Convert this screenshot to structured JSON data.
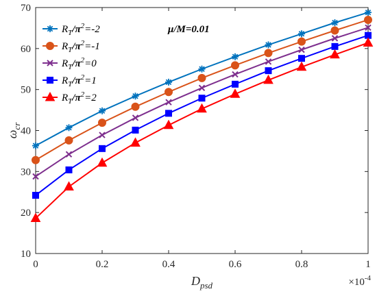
{
  "chart_data": {
    "type": "line",
    "x": [
      0,
      0.1,
      0.2,
      0.3,
      0.4,
      0.5,
      0.6,
      0.7,
      0.8,
      0.9,
      1.0
    ],
    "xlim": [
      0,
      1
    ],
    "ylim": [
      10,
      70
    ],
    "xticks": [
      "0",
      "0.2",
      "0.4",
      "0.6",
      "0.8",
      "1"
    ],
    "yticks": [
      "10",
      "20",
      "30",
      "40",
      "50",
      "60",
      "70"
    ],
    "xticks_values": [
      0,
      0.2,
      0.4,
      0.6,
      0.8,
      1.0
    ],
    "yticks_values": [
      10,
      20,
      30,
      40,
      50,
      60,
      70
    ],
    "xlabel": {
      "main": "D",
      "sub": "psd"
    },
    "ylabel": {
      "main": "ω",
      "sub": "cr"
    },
    "x_multiplier": {
      "base": "×10",
      "exp": "-4"
    },
    "annotation": "μ/M=0.01",
    "legend_placement": "top-left",
    "grid": false,
    "series": [
      {
        "name": "R_T/π²=-2",
        "label_main": "R",
        "label_sub": "T",
        "label_rest": "/π",
        "label_sup": "2",
        "label_tail": "=-2",
        "color": "#0072BD",
        "marker": "asterisk",
        "values": [
          36.3,
          40.7,
          44.8,
          48.4,
          51.8,
          55.0,
          58.0,
          60.9,
          63.6,
          66.3,
          68.8
        ]
      },
      {
        "name": "R_T/π²=-1",
        "label_main": "R",
        "label_sub": "T",
        "label_rest": "/π",
        "label_sup": "2",
        "label_tail": "=-1",
        "color": "#D95319",
        "marker": "circle",
        "values": [
          32.8,
          37.6,
          41.9,
          45.8,
          49.4,
          52.8,
          55.9,
          58.9,
          61.7,
          64.4,
          67.0
        ]
      },
      {
        "name": "R_T/π²=0",
        "label_main": "R",
        "label_sub": "T",
        "label_rest": "/π",
        "label_sup": "2",
        "label_tail": "=0",
        "color": "#7E2F8E",
        "marker": "x",
        "values": [
          28.8,
          34.2,
          38.9,
          43.1,
          46.9,
          50.4,
          53.7,
          56.8,
          59.7,
          62.5,
          65.1
        ]
      },
      {
        "name": "R_T/π²=1",
        "label_main": "R",
        "label_sub": "T",
        "label_rest": "/π",
        "label_sup": "2",
        "label_tail": "=1",
        "color": "#0000FF",
        "marker": "square",
        "values": [
          24.2,
          30.4,
          35.6,
          40.1,
          44.2,
          47.9,
          51.3,
          54.6,
          57.6,
          60.5,
          63.2
        ]
      },
      {
        "name": "R_T/π²=2",
        "label_main": "R",
        "label_sub": "T",
        "label_rest": "/π",
        "label_sup": "2",
        "label_tail": "=2",
        "color": "#FF0000",
        "marker": "triangle",
        "values": [
          18.6,
          26.3,
          32.1,
          37.0,
          41.3,
          45.3,
          48.9,
          52.3,
          55.5,
          58.5,
          61.4
        ]
      }
    ]
  }
}
